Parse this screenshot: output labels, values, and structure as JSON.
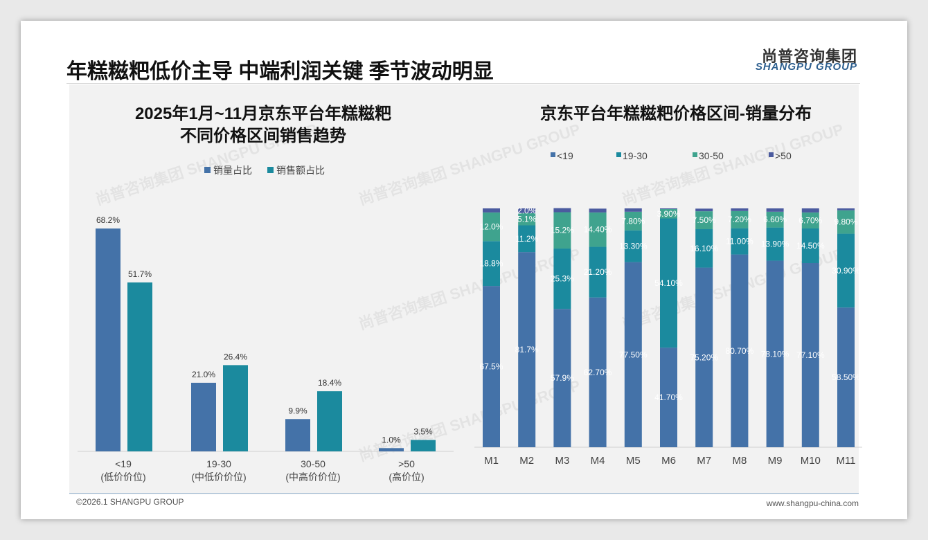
{
  "header": {
    "title": "年糕糍粑低价主导 中端利润关键 季节波动明显",
    "logo_cn": "尚普咨询集团",
    "logo_en": "SHANGPU GROUP"
  },
  "footer": {
    "copyright": "©2026.1 SHANGPU GROUP",
    "website": "www.shangpu-china.com"
  },
  "watermark": "尚普咨询集团 SHANGPU GROUP",
  "colors": {
    "sales_volume": "#4472a8",
    "sales_amount": "#1b8a9e",
    "lt19": "#4472a8",
    "r19_30": "#1b8a9e",
    "r30_50": "#3fa38e",
    "gt50": "#4b5b9f"
  },
  "chart_data": [
    {
      "type": "bar",
      "title": [
        "2025年1月~11月京东平台年糕糍粑",
        "不同价格区间销售趋势"
      ],
      "categories": [
        "<19",
        "19-30",
        "30-50",
        ">50"
      ],
      "category_sub": [
        "(低价价位)",
        "(中低价价位)",
        "(中高价价位)",
        "(高价位)"
      ],
      "series": [
        {
          "name": "销量占比",
          "values": [
            68.2,
            21.0,
            9.9,
            1.0
          ],
          "labels": [
            "68.2%",
            "21.0%",
            "9.9%",
            "1.0%"
          ]
        },
        {
          "name": "销售额占比",
          "values": [
            51.7,
            26.4,
            18.4,
            3.5
          ],
          "labels": [
            "51.7%",
            "26.4%",
            "18.4%",
            "3.5%"
          ]
        }
      ],
      "ylim": [
        0,
        70
      ],
      "legend": "top"
    },
    {
      "type": "bar",
      "stacked": true,
      "title": "京东平台年糕糍粑价格区间-销量分布",
      "categories": [
        "M1",
        "M2",
        "M3",
        "M4",
        "M5",
        "M6",
        "M7",
        "M8",
        "M9",
        "M10",
        "M11"
      ],
      "series": [
        {
          "name": "<19",
          "values": [
            67.5,
            81.7,
            57.9,
            62.7,
            77.5,
            41.7,
            75.2,
            80.7,
            78.1,
            77.1,
            58.5
          ],
          "labels": [
            "67.5%",
            "81.7%",
            "57.9%",
            "62.70%",
            "77.50%",
            "41.70%",
            "75.20%",
            "80.70%",
            "78.10%",
            "77.10%",
            "58.50%"
          ]
        },
        {
          "name": "19-30",
          "values": [
            18.8,
            11.2,
            25.3,
            21.2,
            13.3,
            54.1,
            16.1,
            11.0,
            13.9,
            14.5,
            30.9
          ],
          "labels": [
            "18.8%",
            "11.2%",
            "25.3%",
            "21.20%",
            "13.30%",
            "54.10%",
            "16.10%",
            "11.00%",
            "13.90%",
            "14.50%",
            "30.90%"
          ]
        },
        {
          "name": "30-50",
          "values": [
            12.0,
            5.1,
            15.2,
            14.4,
            7.8,
            3.9,
            7.5,
            7.2,
            6.6,
            6.7,
            9.8
          ],
          "labels": [
            "12.0%",
            "5.1%",
            "15.2%",
            "14.40%",
            "7.80%",
            "3.90%",
            "7.50%",
            "7.20%",
            "6.60%",
            "6.70%",
            "9.80%"
          ]
        },
        {
          "name": ">50",
          "values": [
            1.7,
            2.0,
            1.7,
            1.6,
            1.4,
            0.3,
            1.1,
            1.1,
            1.4,
            1.7,
            0.8
          ],
          "labels": [
            "1.7%",
            "2.0%",
            "1.7%",
            "1.60%",
            "1.40%",
            "0.30%",
            "1.10%",
            "1.10%",
            "1.40%",
            "1.70%",
            "0.80%"
          ]
        }
      ],
      "ylim": [
        0,
        100
      ],
      "legend": "top"
    }
  ]
}
